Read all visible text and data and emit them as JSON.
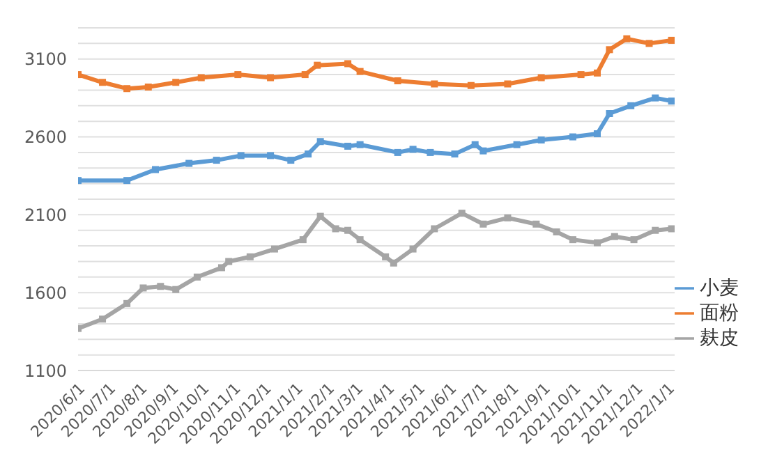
{
  "chart_data": {
    "type": "line",
    "legend": "right",
    "grid": "y",
    "marker": "square",
    "line_style": "solid",
    "xlim": [
      "2020-06-01",
      "2022-01-08"
    ],
    "xticks": [
      {
        "value": "2020-06-01",
        "label": "2020/6/1"
      },
      {
        "value": "2020-07-01",
        "label": "2020/7/1"
      },
      {
        "value": "2020-08-01",
        "label": "2020/8/1"
      },
      {
        "value": "2020-09-01",
        "label": "2020/9/1"
      },
      {
        "value": "2020-10-01",
        "label": "2020/10/1"
      },
      {
        "value": "2020-11-01",
        "label": "2020/11/1"
      },
      {
        "value": "2020-12-01",
        "label": "2020/12/1"
      },
      {
        "value": "2021-01-01",
        "label": "2021/1/1"
      },
      {
        "value": "2021-02-01",
        "label": "2021/2/1"
      },
      {
        "value": "2021-03-01",
        "label": "2021/3/1"
      },
      {
        "value": "2021-04-01",
        "label": "2021/4/1"
      },
      {
        "value": "2021-05-01",
        "label": "2021/5/1"
      },
      {
        "value": "2021-06-01",
        "label": "2021/6/1"
      },
      {
        "value": "2021-07-01",
        "label": "2021/7/1"
      },
      {
        "value": "2021-08-01",
        "label": "2021/8/1"
      },
      {
        "value": "2021-09-01",
        "label": "2021/9/1"
      },
      {
        "value": "2021-10-01",
        "label": "2021/10/1"
      },
      {
        "value": "2021-11-01",
        "label": "2021/11/1"
      },
      {
        "value": "2021-12-01",
        "label": "2021/12/1"
      },
      {
        "value": "2022-01-01",
        "label": "2022/1/1"
      }
    ],
    "ylim": [
      1100,
      3300
    ],
    "yticks": [
      1100,
      {
        "value": 1200,
        "label": null
      },
      {
        "value": 1300,
        "label": null
      },
      {
        "value": 1400,
        "label": null
      },
      {
        "value": 1500,
        "label": null
      },
      1600,
      {
        "value": 1700,
        "label": null
      },
      {
        "value": 1800,
        "label": null
      },
      {
        "value": 1900,
        "label": null
      },
      {
        "value": 2000,
        "label": null
      },
      2100,
      {
        "value": 2200,
        "label": null
      },
      {
        "value": 2300,
        "label": null
      },
      {
        "value": 2400,
        "label": null
      },
      {
        "value": 2500,
        "label": null
      },
      2600,
      {
        "value": 2700,
        "label": null
      },
      {
        "value": 2800,
        "label": null
      },
      {
        "value": 2900,
        "label": null
      },
      {
        "value": 3000,
        "label": null
      },
      3100,
      {
        "value": 3200,
        "label": null
      },
      {
        "value": 3300,
        "label": null
      }
    ],
    "series": [
      {
        "name": "小麦",
        "color": "#5b9bd5",
        "x": [
          "2020-06-01",
          "2020-07-19",
          "2020-08-16",
          "2020-09-18",
          "2020-10-15",
          "2020-11-08",
          "2020-12-07",
          "2020-12-27",
          "2021-01-13",
          "2021-01-25",
          "2021-02-21",
          "2021-03-05",
          "2021-04-11",
          "2021-04-26",
          "2021-05-13",
          "2021-06-06",
          "2021-06-26",
          "2021-07-04",
          "2021-08-06",
          "2021-08-30",
          "2021-09-30",
          "2021-10-24",
          "2021-11-05",
          "2021-11-26",
          "2021-12-20",
          "2022-01-05"
        ],
        "values": [
          2320,
          2320,
          2390,
          2430,
          2450,
          2480,
          2480,
          2450,
          2490,
          2570,
          2540,
          2550,
          2500,
          2520,
          2500,
          2490,
          2550,
          2510,
          2550,
          2580,
          2600,
          2620,
          2750,
          2800,
          2850,
          2830
        ]
      },
      {
        "name": "面粉",
        "color": "#ed7d31",
        "x": [
          "2020-06-01",
          "2020-06-25",
          "2020-07-19",
          "2020-08-09",
          "2020-09-05",
          "2020-09-30",
          "2020-11-05",
          "2020-12-07",
          "2021-01-10",
          "2021-01-22",
          "2021-02-21",
          "2021-03-05",
          "2021-04-11",
          "2021-05-17",
          "2021-06-22",
          "2021-07-28",
          "2021-08-30",
          "2021-10-08",
          "2021-10-24",
          "2021-11-05",
          "2021-11-22",
          "2021-12-14",
          "2022-01-05"
        ],
        "values": [
          3000,
          2950,
          2910,
          2920,
          2950,
          2980,
          3000,
          2980,
          3000,
          3060,
          3070,
          3020,
          2960,
          2940,
          2930,
          2940,
          2980,
          3000,
          3010,
          3160,
          3230,
          3200,
          3220
        ]
      },
      {
        "name": "麸皮",
        "color": "#a5a5a5",
        "x": [
          "2020-06-01",
          "2020-06-25",
          "2020-07-19",
          "2020-08-04",
          "2020-08-21",
          "2020-09-05",
          "2020-09-26",
          "2020-10-20",
          "2020-10-27",
          "2020-11-17",
          "2020-12-11",
          "2021-01-08",
          "2021-01-25",
          "2021-02-09",
          "2021-02-21",
          "2021-03-05",
          "2021-03-30",
          "2021-04-07",
          "2021-04-26",
          "2021-05-17",
          "2021-06-13",
          "2021-07-04",
          "2021-07-28",
          "2021-08-25",
          "2021-09-14",
          "2021-09-30",
          "2021-10-24",
          "2021-11-10",
          "2021-11-29",
          "2021-12-20",
          "2022-01-05"
        ],
        "values": [
          1370,
          1430,
          1530,
          1630,
          1640,
          1620,
          1700,
          1760,
          1800,
          1830,
          1880,
          1940,
          2090,
          2010,
          2000,
          1940,
          1830,
          1790,
          1880,
          2010,
          2110,
          2040,
          2080,
          2040,
          1990,
          1940,
          1920,
          1960,
          1940,
          2000,
          2010
        ]
      }
    ]
  }
}
